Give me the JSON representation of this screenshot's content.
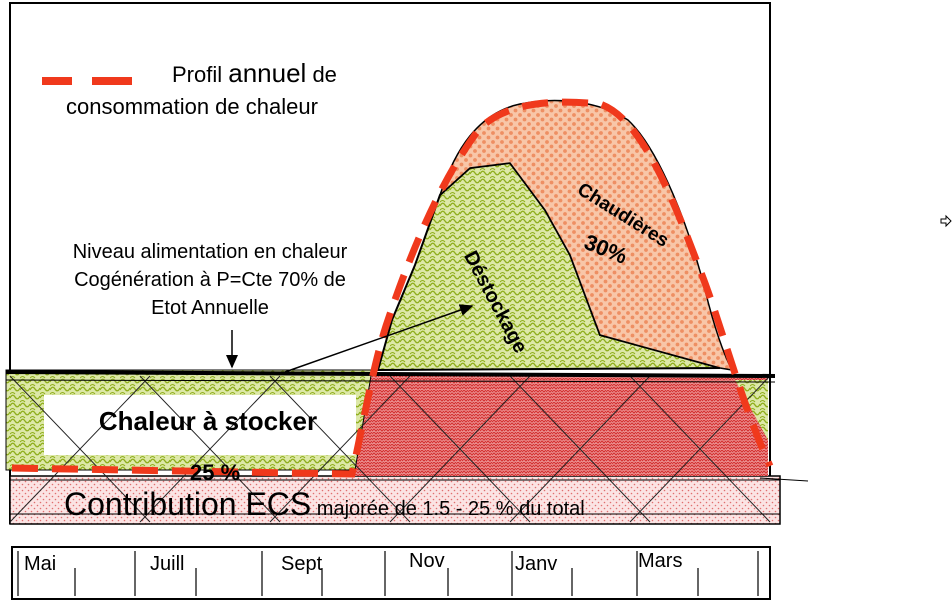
{
  "legend": {
    "label_prefix": "Profil ",
    "label_emph": "annuel",
    "label_suffix": " de",
    "label_line2": "consommation de chaleur"
  },
  "cogeneration_note": {
    "line1": "Niveau alimentation en chaleur",
    "line2": "Cogénération  à P=Cte   70% de",
    "line3": "Etot Annuelle"
  },
  "regions": {
    "chaudieres_label": "Chaudières",
    "chaudieres_pct": "30%",
    "destockage_label": "Déstockage",
    "chaleur_stocker_label": "Chaleur à stocker",
    "hidden_pct": "25 %",
    "ecs_label_big": "Contribution ECS",
    "ecs_label_small": " majorée de 1.5   -    25 % du total"
  },
  "months": [
    "Mai",
    "Juill",
    "Sept",
    "Nov",
    "Janv",
    "Mars"
  ],
  "colors": {
    "profile_dashes": "#f0391c",
    "chaudieres_fill": "#f6b08c",
    "destockage_fill": "#b9cf62",
    "ecs_fill": "#e25b5b",
    "outline": "#000000"
  },
  "side_icon": "right-arrow-icon"
}
